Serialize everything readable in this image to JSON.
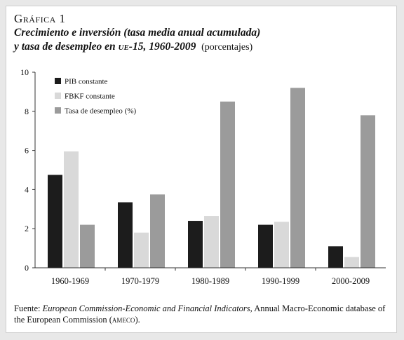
{
  "figure": {
    "label": "Gráfica 1",
    "title_line1": "Crecimiento e inversión (tasa media anual acumulada)",
    "title_line2_prefix": "y tasa de desempleo en ",
    "title_line2_region": "ue-15",
    "title_line2_suffix": ", 1960-2009",
    "subtitle": "(porcentajes)",
    "source_prefix": "Fuente: ",
    "source_italic": "European Commission-Economic and Financial Indicators",
    "source_mid": ", Annual Macro-Economic database of the European Commission (",
    "source_abbrev": "ameco",
    "source_end": ")."
  },
  "colors": {
    "pib": "#1c1c1c",
    "fbkf": "#d9d9d9",
    "desempleo": "#9b9b9b",
    "axis": "#333333"
  },
  "chart_data": {
    "type": "bar",
    "categories": [
      "1960-1969",
      "1970-1979",
      "1980-1989",
      "1990-1999",
      "2000-2009"
    ],
    "series": [
      {
        "name": "PIB constante",
        "values": [
          4.75,
          3.35,
          2.4,
          2.2,
          1.1
        ]
      },
      {
        "name": "FBKF constante",
        "values": [
          5.95,
          1.8,
          2.65,
          2.35,
          0.55
        ]
      },
      {
        "name": "Tasa de desempleo (%)",
        "values": [
          2.2,
          3.75,
          8.5,
          9.2,
          7.8
        ]
      }
    ],
    "yticks": [
      0,
      2,
      4,
      6,
      8,
      10
    ],
    "ylim": [
      0,
      10
    ],
    "legend_position": "top-left"
  }
}
